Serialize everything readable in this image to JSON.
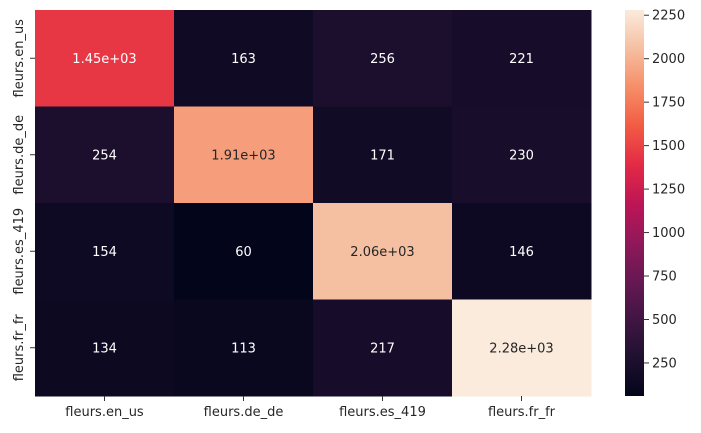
{
  "chart_data": {
    "type": "heatmap",
    "rows": [
      "fleurs.en_us",
      "fleurs.de_de",
      "fleurs.es_419",
      "fleurs.fr_fr"
    ],
    "columns": [
      "fleurs.en_us",
      "fleurs.de_de",
      "fleurs.es_419",
      "fleurs.fr_fr"
    ],
    "values": [
      [
        1450,
        163,
        256,
        221
      ],
      [
        254,
        1910,
        171,
        230
      ],
      [
        154,
        60,
        2060,
        146
      ],
      [
        134,
        113,
        217,
        2280
      ]
    ],
    "cell_labels": [
      [
        "1.45e+03",
        "163",
        "256",
        "221"
      ],
      [
        "254",
        "1.91e+03",
        "171",
        "230"
      ],
      [
        "154",
        "60",
        "2.06e+03",
        "146"
      ],
      [
        "134",
        "113",
        "217",
        "2.28e+03"
      ]
    ],
    "colormap": "rocket",
    "colorbar": {
      "range": [
        60,
        2280
      ],
      "ticks": [
        250,
        500,
        750,
        1000,
        1250,
        1500,
        1750,
        2000,
        2250
      ],
      "tick_labels": [
        "250",
        "500",
        "750",
        "1000",
        "1250",
        "1500",
        "1750",
        "2000",
        "2250"
      ]
    },
    "title": "",
    "xlabel": "",
    "ylabel": ""
  }
}
